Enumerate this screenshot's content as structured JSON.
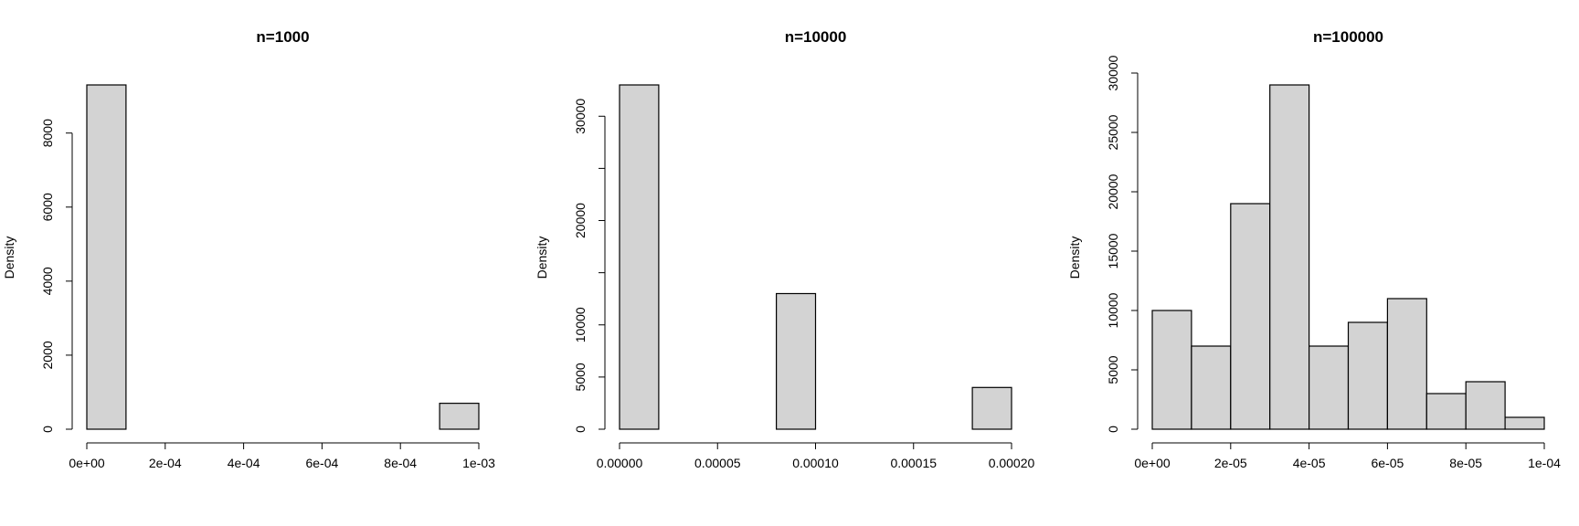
{
  "colors": {
    "bar_fill": "#d3d3d3",
    "bar_stroke": "#000000",
    "background": "#ffffff"
  },
  "chart_data": [
    {
      "type": "bar",
      "title": "n=1000",
      "xlabel": "",
      "ylabel": "Density",
      "x_ticks": [
        0,
        0.0002,
        0.0004,
        0.0006,
        0.0008,
        0.001
      ],
      "x_tick_labels": [
        "0e+00",
        "2e-04",
        "4e-04",
        "6e-04",
        "8e-04",
        "1e-03"
      ],
      "y_ticks": [
        0,
        2000,
        4000,
        6000,
        8000
      ],
      "y_tick_labels": [
        "0",
        "2000",
        "4000",
        "6000",
        "8000"
      ],
      "xlim": [
        0,
        0.001
      ],
      "ylim": [
        0,
        9300
      ],
      "bins": [
        {
          "x0": 0,
          "x1": 0.0001,
          "density": 9300
        },
        {
          "x0": 0.0001,
          "x1": 0.0002,
          "density": 0
        },
        {
          "x0": 0.0002,
          "x1": 0.0003,
          "density": 0
        },
        {
          "x0": 0.0003,
          "x1": 0.0004,
          "density": 0
        },
        {
          "x0": 0.0004,
          "x1": 0.0005,
          "density": 0
        },
        {
          "x0": 0.0005,
          "x1": 0.0006,
          "density": 0
        },
        {
          "x0": 0.0006,
          "x1": 0.0007,
          "density": 0
        },
        {
          "x0": 0.0007,
          "x1": 0.0008,
          "density": 0
        },
        {
          "x0": 0.0008,
          "x1": 0.0009,
          "density": 0
        },
        {
          "x0": 0.0009,
          "x1": 0.001,
          "density": 700
        }
      ]
    },
    {
      "type": "bar",
      "title": "n=10000",
      "xlabel": "",
      "ylabel": "Density",
      "x_ticks": [
        0,
        5e-05,
        0.0001,
        0.00015,
        0.0002
      ],
      "x_tick_labels": [
        "0.00000",
        "0.00005",
        "0.00010",
        "0.00015",
        "0.00020"
      ],
      "y_ticks": [
        0,
        5000,
        10000,
        15000,
        20000,
        25000,
        30000
      ],
      "y_tick_labels": [
        "0",
        "5000",
        "10000",
        "",
        "20000",
        "",
        "30000"
      ],
      "xlim": [
        0,
        0.0002
      ],
      "ylim": [
        0,
        33000
      ],
      "bins": [
        {
          "x0": 0,
          "x1": 2e-05,
          "density": 33000
        },
        {
          "x0": 2e-05,
          "x1": 4e-05,
          "density": 0
        },
        {
          "x0": 4e-05,
          "x1": 6e-05,
          "density": 0
        },
        {
          "x0": 6e-05,
          "x1": 8e-05,
          "density": 0
        },
        {
          "x0": 8e-05,
          "x1": 0.0001,
          "density": 13000
        },
        {
          "x0": 0.0001,
          "x1": 0.00012,
          "density": 0
        },
        {
          "x0": 0.00012,
          "x1": 0.00014,
          "density": 0
        },
        {
          "x0": 0.00014,
          "x1": 0.00016,
          "density": 0
        },
        {
          "x0": 0.00016,
          "x1": 0.00018,
          "density": 0
        },
        {
          "x0": 0.00018,
          "x1": 0.0002,
          "density": 4000
        }
      ]
    },
    {
      "type": "bar",
      "title": "n=100000",
      "xlabel": "",
      "ylabel": "Density",
      "x_ticks": [
        0,
        2e-05,
        4e-05,
        6e-05,
        8e-05,
        0.0001
      ],
      "x_tick_labels": [
        "0e+00",
        "2e-05",
        "4e-05",
        "6e-05",
        "8e-05",
        "1e-04"
      ],
      "y_ticks": [
        0,
        5000,
        10000,
        15000,
        20000,
        25000,
        30000
      ],
      "y_tick_labels": [
        "0",
        "5000",
        "10000",
        "15000",
        "20000",
        "25000",
        "30000"
      ],
      "xlim": [
        0,
        0.0001
      ],
      "ylim": [
        0,
        30000
      ],
      "bins": [
        {
          "x0": 0,
          "x1": 1e-05,
          "density": 10000
        },
        {
          "x0": 1e-05,
          "x1": 2e-05,
          "density": 7000
        },
        {
          "x0": 2e-05,
          "x1": 3e-05,
          "density": 19000
        },
        {
          "x0": 3e-05,
          "x1": 4e-05,
          "density": 29000
        },
        {
          "x0": 4e-05,
          "x1": 5e-05,
          "density": 7000
        },
        {
          "x0": 5e-05,
          "x1": 6e-05,
          "density": 9000
        },
        {
          "x0": 6e-05,
          "x1": 7e-05,
          "density": 11000
        },
        {
          "x0": 7e-05,
          "x1": 8e-05,
          "density": 3000
        },
        {
          "x0": 8e-05,
          "x1": 9e-05,
          "density": 4000
        },
        {
          "x0": 9e-05,
          "x1": 0.0001,
          "density": 1000
        }
      ]
    }
  ]
}
